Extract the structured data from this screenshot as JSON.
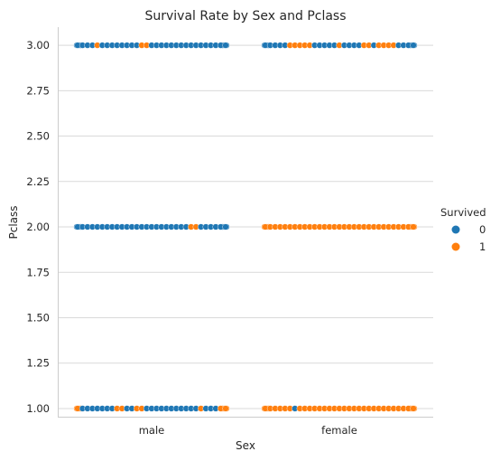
{
  "chart_data": {
    "type": "scatter",
    "subtype": "swarm",
    "title": "Survival Rate by Sex and Pclass",
    "xlabel": "Sex",
    "ylabel": "Pclass",
    "categories": [
      "male",
      "female"
    ],
    "ylim": [
      0.95,
      3.1
    ],
    "yticks": [
      "1.00",
      "1.25",
      "1.50",
      "1.75",
      "2.00",
      "2.25",
      "2.50",
      "2.75",
      "3.00"
    ],
    "grid": "horizontal",
    "legend": {
      "title": "Survived",
      "placement": "right",
      "entries": [
        {
          "label": "0",
          "color": "#1f77b4"
        },
        {
          "label": "1",
          "color": "#ff7f0e"
        }
      ]
    },
    "groups": [
      {
        "sex": "male",
        "pclass": 3,
        "pattern": "0000100000000110000000000000000"
      },
      {
        "sex": "female",
        "pclass": 3,
        "pattern": "0000011111000001000011011110000"
      },
      {
        "sex": "male",
        "pclass": 2,
        "pattern": "0000000000000000000000011000000"
      },
      {
        "sex": "female",
        "pclass": 2,
        "pattern": "1111111111111111111111111111111"
      },
      {
        "sex": "male",
        "pclass": 1,
        "pattern": "1000000011001100000000000100011"
      },
      {
        "sex": "female",
        "pclass": 1,
        "pattern": "1111110111111111111111111111111"
      }
    ]
  }
}
